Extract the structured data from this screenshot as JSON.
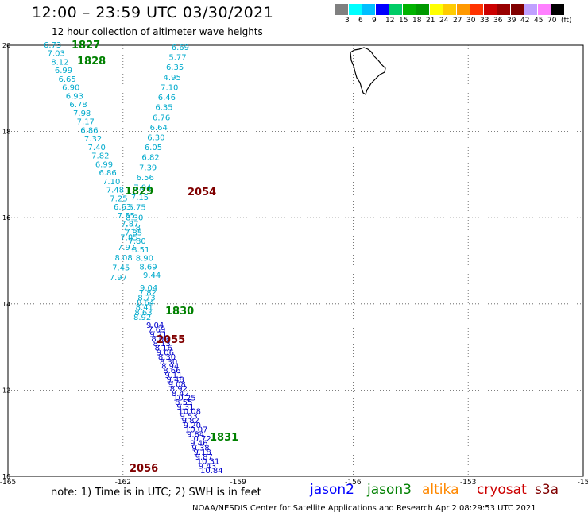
{
  "title": "12:00 – 23:59 UTC 03/30/2021",
  "subtitle": "12 hour collection of altimeter wave heights",
  "colorbar": {
    "colors": [
      "#808080",
      "#00ffff",
      "#00bfff",
      "#0000ff",
      "#00cc66",
      "#00b300",
      "#009900",
      "#ffff00",
      "#ffcc00",
      "#ff9900",
      "#ff3300",
      "#cc0000",
      "#990000",
      "#800000",
      "#c0a0ff",
      "#ff80ff",
      "#000000"
    ],
    "labels": [
      "3",
      "6",
      "9",
      "12",
      "15",
      "18",
      "21",
      "24",
      "27",
      "30",
      "33",
      "36",
      "39",
      "42",
      "45",
      "70",
      "(ft)"
    ]
  },
  "axes": {
    "x_ticks": [
      "-165",
      "-162",
      "-159",
      "-156",
      "-153",
      "-15"
    ],
    "y_ticks": [
      "20",
      "18",
      "16",
      "14",
      "12",
      "10"
    ],
    "lon_range": [
      -165,
      -150
    ],
    "lat_range": [
      10,
      20
    ]
  },
  "chart_data": {
    "type": "scatter",
    "units": "ft",
    "passes": [
      {
        "id": "1827",
        "satellite": "jason3",
        "color": "#00aacc",
        "values": [
          "6.73",
          "7.03",
          "8.12",
          "6.99",
          "6.65",
          "6.90",
          "6.93",
          "6.78",
          "7.98",
          "7.17",
          "6.86",
          "7.32",
          "7.40",
          "7.82",
          "6.99",
          "6.86",
          "7.10",
          "7.48",
          "7.25",
          "6.63",
          "7.55",
          "7.87",
          "7.85",
          "7.80",
          "8.51",
          "8.90",
          "8.69",
          "9.44"
        ]
      },
      {
        "id": "1828",
        "satellite": "jason3",
        "color": "#00aacc",
        "values": [
          "6.69",
          "5.77",
          "6.35",
          "4.95",
          "7.10",
          "6.46",
          "6.35",
          "6.76",
          "6.64",
          "6.30",
          "6.05",
          "6.82",
          "7.39",
          "6.56",
          "7.04",
          "7.15",
          "5.75",
          "8.30",
          "7.18",
          "7.85",
          "7.97",
          "8.08",
          "7.45",
          "7.97"
        ]
      },
      {
        "id": "1829",
        "satellite": "jason3",
        "color": "#00aacc",
        "values": [
          "9.04",
          "7.82",
          "8.73",
          "8.64",
          "8.41",
          "8.63",
          "8.92"
        ]
      },
      {
        "id": "1830",
        "satellite": "jason3",
        "color": "#0000cc",
        "values": [
          "9.04",
          "7.69",
          "9.21",
          "8.09",
          "8.13",
          "8.16",
          "9.06",
          "8.30",
          "8.30",
          "8.94",
          "8.66",
          "9.11",
          "9.48",
          "9.08",
          "8.92",
          "8.42",
          "10.25",
          "8.55",
          "9.31",
          "10.08",
          "9.53",
          "9.82",
          "9.20",
          "10.07",
          "9.84",
          "10.72",
          "9.46",
          "9.38",
          "9.18",
          "9.87",
          "10.31",
          "9.43",
          "10.84"
        ]
      },
      {
        "id": "1831",
        "satellite": "jason3",
        "color": "#0000cc",
        "values": []
      }
    ],
    "pass_labels": [
      {
        "id": "1827",
        "color": "#008000"
      },
      {
        "id": "1828",
        "color": "#008000"
      },
      {
        "id": "1829",
        "color": "#008000"
      },
      {
        "id": "1830",
        "color": "#008000"
      },
      {
        "id": "1831",
        "color": "#008000"
      },
      {
        "id": "2054",
        "color": "#800000"
      },
      {
        "id": "2055",
        "color": "#800000"
      },
      {
        "id": "2056",
        "color": "#800000"
      }
    ]
  },
  "note": "note:  1) Time is in UTC;  2) SWH is in feet",
  "satellites": [
    {
      "name": "jason2",
      "color": "#0000ff"
    },
    {
      "name": "jason3",
      "color": "#008000"
    },
    {
      "name": "altika",
      "color": "#ff8800"
    },
    {
      "name": "cryosat",
      "color": "#cc0000"
    },
    {
      "name": "s3a",
      "color": "#800000"
    }
  ],
  "footer": "NOAA/NESDIS Center for Satellite Applications and Research    Apr  2 08:29:53 UTC 2021"
}
